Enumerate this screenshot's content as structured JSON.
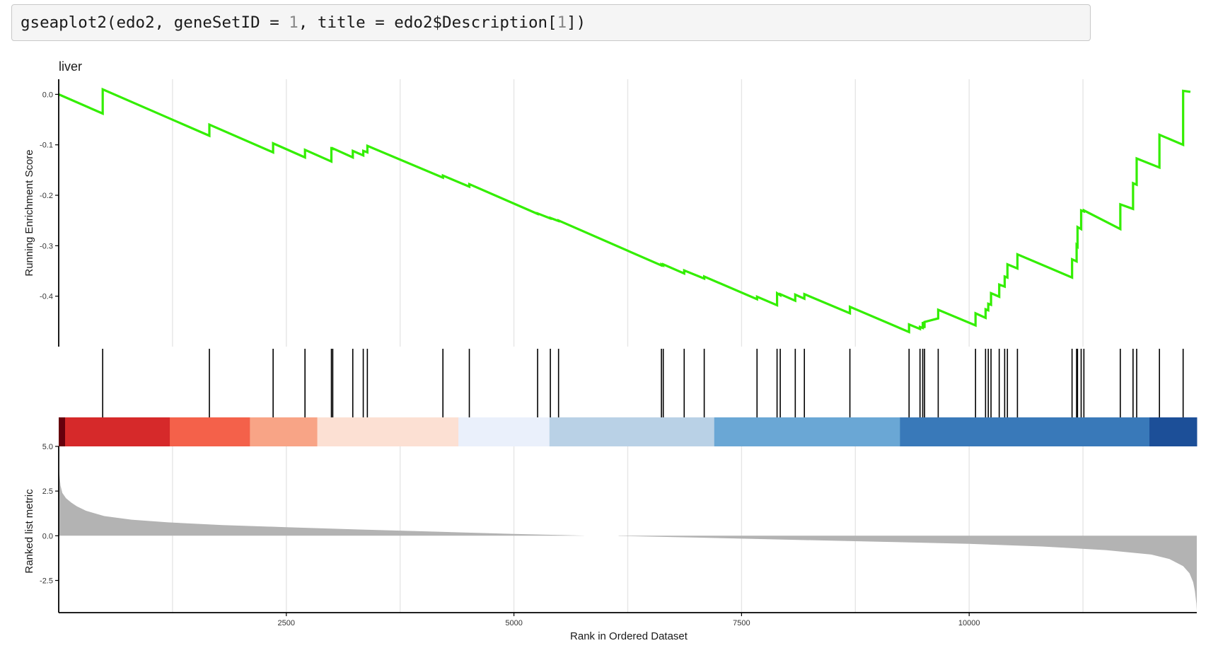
{
  "code": {
    "prefix": "gseaplot2(edo2, geneSetID = ",
    "arg_num": "1",
    "middle": ", title = edo2$Description[",
    "idx_num": "1",
    "suffix": "])"
  },
  "colors": {
    "es_line": "#33ee00",
    "hits": "#000000",
    "metric_fill": "#b3b3b3",
    "grid": "#e6e6e6",
    "heat": [
      "#67000d",
      "#d6292a",
      "#f4614a",
      "#f8a486",
      "#fce0d3",
      "#eaf0fb",
      "#b9d1e6",
      "#6aa7d5",
      "#3979b9",
      "#1c4f98"
    ]
  },
  "chart_data": {
    "type": "line",
    "title": "liver",
    "xlabel": "Rank in Ordered Dataset",
    "xlim": [
      0,
      12500
    ],
    "x_ticks": [
      2500,
      5000,
      7500,
      10000
    ],
    "x_tick_labels": [
      "2500",
      "5000",
      "7500",
      "10000"
    ],
    "es_panel": {
      "ylabel": "Running Enrichment Score",
      "ylim": [
        -0.5,
        0.03
      ],
      "y_ticks": [
        0.0,
        -0.1,
        -0.2,
        -0.3,
        -0.4
      ],
      "y_tick_labels": [
        "0.0",
        "-0.1",
        "-0.2",
        "-0.3",
        "-0.4"
      ],
      "series": [
        {
          "x": [
            0,
            483,
            483,
            1655,
            1655,
            2355,
            2355,
            2705,
            2705,
            2995,
            2995,
            3010,
            3010,
            3230,
            3230,
            3345,
            3345,
            3390,
            3390,
            4220,
            4220,
            4510,
            4510,
            5260,
            5260,
            5400,
            5400,
            5490,
            5490,
            6620,
            6620,
            6640,
            6640,
            6870,
            6870,
            7090,
            7090,
            7670,
            7670,
            7890,
            7890,
            7925,
            7925,
            8090,
            8090,
            8190,
            8190,
            8690,
            8690,
            9340,
            9340,
            9460,
            9460,
            9490,
            9490,
            9510,
            9510,
            9660,
            9660,
            10070,
            10070,
            10180,
            10180,
            10210,
            10210,
            10240,
            10240,
            10330,
            10330,
            10390,
            10390,
            10420,
            10420,
            10530,
            10530,
            11130,
            11130,
            11180,
            11180,
            11190,
            11190,
            11230,
            11230,
            11260,
            11260,
            11660,
            11660,
            11800,
            11800,
            11840,
            11840,
            12090,
            12090,
            12350,
            12350,
            12430
          ],
          "y": [
            0.0,
            -0.038,
            0.01,
            -0.082,
            -0.06,
            -0.115,
            -0.097,
            -0.125,
            -0.11,
            -0.133,
            -0.107,
            -0.108,
            -0.107,
            -0.125,
            -0.112,
            -0.121,
            -0.112,
            -0.115,
            -0.102,
            -0.165,
            -0.161,
            -0.183,
            -0.178,
            -0.237,
            -0.236,
            -0.246,
            -0.245,
            -0.251,
            -0.25,
            -0.339,
            -0.337,
            -0.339,
            -0.337,
            -0.355,
            -0.349,
            -0.365,
            -0.361,
            -0.406,
            -0.401,
            -0.418,
            -0.394,
            -0.398,
            -0.396,
            -0.409,
            -0.397,
            -0.405,
            -0.396,
            -0.434,
            -0.421,
            -0.471,
            -0.456,
            -0.465,
            -0.461,
            -0.463,
            -0.451,
            -0.463,
            -0.451,
            -0.444,
            -0.427,
            -0.458,
            -0.434,
            -0.443,
            -0.426,
            -0.428,
            -0.415,
            -0.417,
            -0.394,
            -0.401,
            -0.377,
            -0.381,
            -0.361,
            -0.363,
            -0.337,
            -0.345,
            -0.317,
            -0.363,
            -0.327,
            -0.331,
            -0.299,
            -0.301,
            -0.263,
            -0.267,
            -0.23,
            -0.232,
            -0.23,
            -0.267,
            -0.218,
            -0.227,
            -0.176,
            -0.179,
            -0.127,
            -0.145,
            -0.08,
            -0.1,
            0.007,
            0.005
          ]
        }
      ]
    },
    "hit_positions": [
      483,
      1655,
      2355,
      2705,
      2995,
      3010,
      3230,
      3345,
      3390,
      4220,
      4510,
      5260,
      5400,
      5490,
      6620,
      6640,
      6870,
      7090,
      7670,
      7890,
      7925,
      8090,
      8190,
      8690,
      9340,
      9460,
      9490,
      9510,
      9660,
      10070,
      10180,
      10210,
      10240,
      10330,
      10390,
      10420,
      10530,
      11130,
      11180,
      11190,
      11230,
      11260,
      11660,
      11800,
      11840,
      12090,
      12350
    ],
    "heat_bands": [
      {
        "from": 0,
        "to": 70,
        "color": 0
      },
      {
        "from": 70,
        "to": 1220,
        "color": 1
      },
      {
        "from": 1220,
        "to": 2100,
        "color": 2
      },
      {
        "from": 2100,
        "to": 2840,
        "color": 3
      },
      {
        "from": 2840,
        "to": 4390,
        "color": 4
      },
      {
        "from": 4390,
        "to": 5390,
        "color": 5
      },
      {
        "from": 5390,
        "to": 7200,
        "color": 6
      },
      {
        "from": 7200,
        "to": 9240,
        "color": 7
      },
      {
        "from": 9240,
        "to": 11980,
        "color": 8
      },
      {
        "from": 11980,
        "to": 12500,
        "color": 9
      }
    ],
    "metric_panel": {
      "ylabel": "Ranked list metric",
      "ylim": [
        -4.3,
        5.0
      ],
      "y_ticks": [
        5.0,
        2.5,
        0.0,
        -2.5
      ],
      "y_tick_labels": [
        "5.0",
        "2.5",
        "0.0",
        "-2.5"
      ],
      "gap": [
        5770,
        6150
      ],
      "profile": {
        "x": [
          0,
          10,
          20,
          40,
          80,
          140,
          200,
          300,
          500,
          800,
          1200,
          1800,
          2500,
          3300,
          4200,
          5000,
          5500,
          5770
        ],
        "y": [
          3.8,
          3.3,
          2.8,
          2.4,
          2.1,
          1.85,
          1.65,
          1.4,
          1.1,
          0.9,
          0.75,
          0.6,
          0.48,
          0.35,
          0.22,
          0.1,
          0.04,
          0.01
        ]
      },
      "profile_neg": {
        "x": [
          6150,
          7000,
          8000,
          9000,
          10000,
          10800,
          11500,
          12000,
          12200,
          12350,
          12420,
          12460,
          12480,
          12495,
          12500
        ],
        "y": [
          -0.01,
          -0.1,
          -0.22,
          -0.33,
          -0.45,
          -0.6,
          -0.8,
          -1.05,
          -1.3,
          -1.7,
          -2.1,
          -2.6,
          -3.1,
          -3.8,
          -4.2
        ]
      }
    }
  }
}
